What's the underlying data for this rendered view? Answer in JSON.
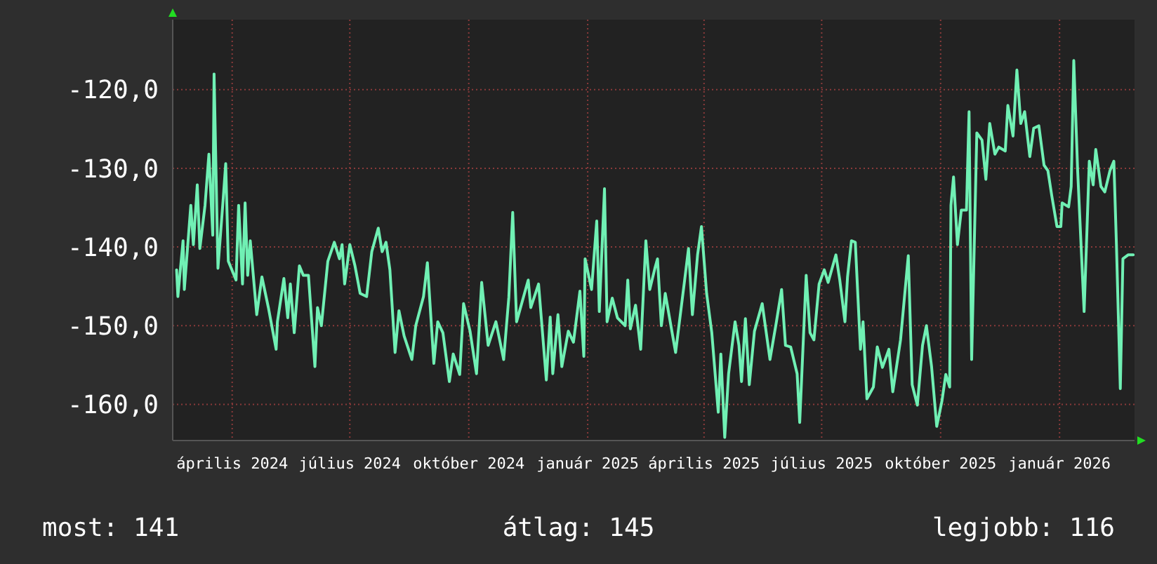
{
  "chart_data": {
    "type": "line",
    "grid": true,
    "marker": "none",
    "line_style": "solid",
    "xlim": [
      "2024-02-15",
      "2026-02-28"
    ],
    "xticks": [
      {
        "value": "2024-04-01",
        "label": "április 2024"
      },
      {
        "value": "2024-07-01",
        "label": "július 2024"
      },
      {
        "value": "2024-10-01",
        "label": "október 2024"
      },
      {
        "value": "2025-01-01",
        "label": "január 2025"
      },
      {
        "value": "2025-04-01",
        "label": "április 2025"
      },
      {
        "value": "2025-07-01",
        "label": "július 2025"
      },
      {
        "value": "2025-10-01",
        "label": "október 2025"
      },
      {
        "value": "2026-01-01",
        "label": "január 2026"
      }
    ],
    "ylim": [
      -164.6,
      -111.1
    ],
    "yticks": [
      {
        "value": -120,
        "label": "-120,0"
      },
      {
        "value": -130,
        "label": "-130,0"
      },
      {
        "value": -140,
        "label": "-140,0"
      },
      {
        "value": -150,
        "label": "-150,0"
      },
      {
        "value": -160,
        "label": "-160,0"
      }
    ],
    "annotations": [
      "most: 141",
      "átlag: 145",
      "legjobb: 116"
    ],
    "series": [
      {
        "color": "#70f0b4",
        "x": [
          "2024-02-18",
          "2024-02-19",
          "2024-02-23",
          "2024-02-24",
          "2024-02-29",
          "2024-03-02",
          "2024-03-05",
          "2024-03-07",
          "2024-03-11",
          "2024-03-14",
          "2024-03-17",
          "2024-03-18",
          "2024-03-21",
          "2024-03-25",
          "2024-03-27",
          "2024-03-29",
          "2024-04-04",
          "2024-04-06",
          "2024-04-09",
          "2024-04-11",
          "2024-04-13",
          "2024-04-15",
          "2024-04-20",
          "2024-04-24",
          "2024-04-29",
          "2024-05-05",
          "2024-05-06",
          "2024-05-11",
          "2024-05-14",
          "2024-05-16",
          "2024-05-19",
          "2024-05-23",
          "2024-05-26",
          "2024-05-30",
          "2024-06-04",
          "2024-06-06",
          "2024-06-09",
          "2024-06-14",
          "2024-06-19",
          "2024-06-23",
          "2024-06-25",
          "2024-06-27",
          "2024-07-01",
          "2024-07-05",
          "2024-07-09",
          "2024-07-14",
          "2024-07-18",
          "2024-07-23",
          "2024-07-26",
          "2024-07-29",
          "2024-08-01",
          "2024-08-05",
          "2024-08-08",
          "2024-08-12",
          "2024-08-18",
          "2024-08-21",
          "2024-08-27",
          "2024-08-30",
          "2024-09-04",
          "2024-09-07",
          "2024-09-11",
          "2024-09-16",
          "2024-09-19",
          "2024-09-24",
          "2024-09-27",
          "2024-10-02",
          "2024-10-07",
          "2024-10-11",
          "2024-10-16",
          "2024-10-22",
          "2024-10-28",
          "2024-11-01",
          "2024-11-04",
          "2024-11-07",
          "2024-11-16",
          "2024-11-18",
          "2024-11-24",
          "2024-11-30",
          "2024-12-03",
          "2024-12-05",
          "2024-12-09",
          "2024-12-12",
          "2024-12-17",
          "2024-12-21",
          "2024-12-26",
          "2024-12-29",
          "2024-12-30",
          "2025-01-04",
          "2025-01-08",
          "2025-01-10",
          "2025-01-14",
          "2025-01-16",
          "2025-01-20",
          "2025-01-24",
          "2025-01-30",
          "2025-02-01",
          "2025-02-03",
          "2025-02-07",
          "2025-02-11",
          "2025-02-15",
          "2025-02-18",
          "2025-02-22",
          "2025-02-24",
          "2025-02-27",
          "2025-03-02",
          "2025-03-10",
          "2025-03-17",
          "2025-03-20",
          "2025-03-23",
          "2025-03-27",
          "2025-03-30",
          "2025-04-03",
          "2025-04-07",
          "2025-04-12",
          "2025-04-14",
          "2025-04-17",
          "2025-04-20",
          "2025-04-25",
          "2025-04-28",
          "2025-04-30",
          "2025-05-03",
          "2025-05-06",
          "2025-05-10",
          "2025-05-16",
          "2025-05-22",
          "2025-05-27",
          "2025-05-31",
          "2025-06-03",
          "2025-06-07",
          "2025-06-12",
          "2025-06-14",
          "2025-06-19",
          "2025-06-22",
          "2025-06-25",
          "2025-06-29",
          "2025-07-03",
          "2025-07-06",
          "2025-07-12",
          "2025-07-15",
          "2025-07-19",
          "2025-07-21",
          "2025-07-24",
          "2025-07-27",
          "2025-07-31",
          "2025-08-02",
          "2025-08-05",
          "2025-08-10",
          "2025-08-13",
          "2025-08-17",
          "2025-08-22",
          "2025-08-25",
          "2025-08-31",
          "2025-09-06",
          "2025-09-09",
          "2025-09-13",
          "2025-09-17",
          "2025-09-20",
          "2025-09-24",
          "2025-09-28",
          "2025-10-02",
          "2025-10-05",
          "2025-10-08",
          "2025-10-09",
          "2025-10-11",
          "2025-10-14",
          "2025-10-17",
          "2025-10-21",
          "2025-10-23",
          "2025-10-25",
          "2025-10-29",
          "2025-11-02",
          "2025-11-05",
          "2025-11-08",
          "2025-11-12",
          "2025-11-15",
          "2025-11-20",
          "2025-11-22",
          "2025-11-26",
          "2025-11-29",
          "2025-12-02",
          "2025-12-05",
          "2025-12-09",
          "2025-12-12",
          "2025-12-16",
          "2025-12-20",
          "2025-12-23",
          "2025-12-26",
          "2025-12-30",
          "2026-01-02",
          "2026-01-03",
          "2026-01-08",
          "2026-01-10",
          "2026-01-12",
          "2026-01-15",
          "2026-01-20",
          "2026-01-22",
          "2026-01-24",
          "2026-01-27",
          "2026-01-29",
          "2026-02-02",
          "2026-02-05",
          "2026-02-09",
          "2026-02-12",
          "2026-02-14",
          "2026-02-17",
          "2026-02-19",
          "2026-02-23",
          "2026-02-27"
        ],
        "values": [
          -142.9,
          -146.3,
          -139.2,
          -145.4,
          -134.7,
          -139.7,
          -132.1,
          -140.2,
          -134.7,
          -128.2,
          -138.5,
          -118.0,
          -142.7,
          -134.0,
          -129.4,
          -141.8,
          -144.2,
          -134.7,
          -144.7,
          -134.4,
          -143.6,
          -139.2,
          -148.6,
          -143.8,
          -147.7,
          -153.0,
          -149.5,
          -144.0,
          -149.0,
          -144.7,
          -150.9,
          -142.4,
          -143.6,
          -143.6,
          -155.2,
          -147.7,
          -150.0,
          -141.8,
          -139.4,
          -141.5,
          -139.7,
          -144.7,
          -139.7,
          -142.4,
          -145.9,
          -146.3,
          -140.6,
          -137.6,
          -140.6,
          -139.4,
          -142.9,
          -153.4,
          -148.1,
          -151.3,
          -154.3,
          -150.0,
          -146.3,
          -142.0,
          -154.8,
          -149.5,
          -150.9,
          -157.1,
          -153.6,
          -156.2,
          -147.2,
          -150.7,
          -156.1,
          -144.5,
          -152.5,
          -149.5,
          -154.3,
          -146.4,
          -135.6,
          -149.5,
          -144.2,
          -147.7,
          -144.7,
          -156.9,
          -148.9,
          -156.1,
          -148.6,
          -155.2,
          -150.7,
          -152.1,
          -145.6,
          -153.9,
          -141.5,
          -145.4,
          -136.7,
          -148.2,
          -132.6,
          -149.5,
          -146.5,
          -149.0,
          -150.0,
          -144.2,
          -150.4,
          -147.4,
          -153.0,
          -139.2,
          -145.4,
          -142.7,
          -141.5,
          -150.0,
          -145.9,
          -153.4,
          -144.2,
          -140.2,
          -148.6,
          -141.0,
          -137.4,
          -145.9,
          -150.9,
          -161.0,
          -153.6,
          -164.2,
          -156.1,
          -149.5,
          -152.5,
          -157.1,
          -149.1,
          -157.5,
          -150.7,
          -147.2,
          -154.3,
          -149.5,
          -145.4,
          -152.5,
          -152.7,
          -156.1,
          -162.3,
          -143.6,
          -150.9,
          -151.8,
          -144.7,
          -142.9,
          -144.5,
          -141.0,
          -144.2,
          -149.5,
          -143.8,
          -139.2,
          -139.4,
          -153.0,
          -149.5,
          -159.3,
          -157.8,
          -152.7,
          -155.3,
          -153.0,
          -158.4,
          -151.8,
          -141.1,
          -157.5,
          -160.1,
          -152.5,
          -150.0,
          -155.2,
          -162.8,
          -159.6,
          -156.2,
          -157.8,
          -134.7,
          -131.1,
          -139.7,
          -135.3,
          -135.3,
          -122.8,
          -154.3,
          -125.5,
          -126.4,
          -131.4,
          -124.3,
          -128.2,
          -127.3,
          -127.8,
          -122.0,
          -125.9,
          -117.5,
          -124.3,
          -122.8,
          -128.5,
          -124.9,
          -124.6,
          -129.6,
          -130.3,
          -133.5,
          -137.4,
          -137.4,
          -134.4,
          -134.9,
          -132.3,
          -116.3,
          -130.3,
          -148.2,
          -138.8,
          -129.1,
          -132.1,
          -127.6,
          -132.3,
          -133.0,
          -130.3,
          -129.1,
          -139.7,
          -158.0,
          -141.5,
          -141.0,
          -141.0
        ]
      }
    ]
  }
}
